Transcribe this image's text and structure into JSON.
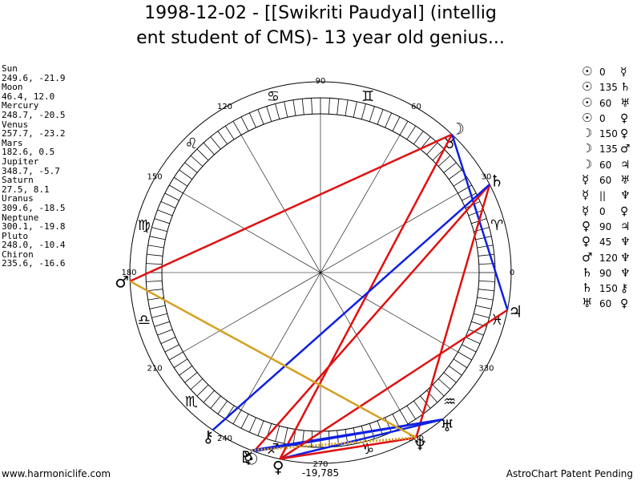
{
  "header": {
    "title_line1": "1998-12-02 - [[Swikriti Paudyal] (intellig",
    "title_line2": "ent student of CMS)- 13 year old genius..."
  },
  "positions": [
    {
      "name": "Sun",
      "lon": 249.6,
      "lat": -21.9,
      "value": "249.6, -21.9"
    },
    {
      "name": "Moon",
      "lon": 46.4,
      "lat": 12.0,
      "value": "46.4, 12.0"
    },
    {
      "name": "Mercury",
      "lon": 248.7,
      "lat": -20.5,
      "value": "248.7, -20.5"
    },
    {
      "name": "Venus",
      "lon": 257.7,
      "lat": -23.2,
      "value": "257.7, -23.2"
    },
    {
      "name": "Mars",
      "lon": 182.6,
      "lat": 0.5,
      "value": "182.6, 0.5"
    },
    {
      "name": "Jupiter",
      "lon": 348.7,
      "lat": -5.7,
      "value": "348.7, -5.7"
    },
    {
      "name": "Saturn",
      "lon": 27.5,
      "lat": 8.1,
      "value": "27.5, 8.1"
    },
    {
      "name": "Uranus",
      "lon": 309.6,
      "lat": -18.5,
      "value": "309.6, -18.5"
    },
    {
      "name": "Neptune",
      "lon": 300.1,
      "lat": -19.8,
      "value": "300.1, -19.8"
    },
    {
      "name": "Pluto",
      "lon": 248.0,
      "lat": -10.4,
      "value": "248.0, -10.4"
    },
    {
      "name": "Chiron",
      "lon": 235.6,
      "lat": -16.6,
      "value": "235.6, -16.6"
    }
  ],
  "aspects": [
    {
      "p1": "☉",
      "deg": "0",
      "p2": "☿"
    },
    {
      "p1": "☉",
      "deg": "135",
      "p2": "♄"
    },
    {
      "p1": "☉",
      "deg": "60",
      "p2": "♅"
    },
    {
      "p1": "☉",
      "deg": "0",
      "p2": "♀"
    },
    {
      "p1": "☽",
      "deg": "150",
      "p2": "♀"
    },
    {
      "p1": "☽",
      "deg": "135",
      "p2": "♂"
    },
    {
      "p1": "☽",
      "deg": "60",
      "p2": "♃"
    },
    {
      "p1": "☿",
      "deg": "60",
      "p2": "♅"
    },
    {
      "p1": "☿",
      "deg": "||",
      "p2": "♆"
    },
    {
      "p1": "☿",
      "deg": "0",
      "p2": "♀"
    },
    {
      "p1": "♀",
      "deg": "90",
      "p2": "♃"
    },
    {
      "p1": "♀",
      "deg": "45",
      "p2": "♆"
    },
    {
      "p1": "♂",
      "deg": "120",
      "p2": "♆"
    },
    {
      "p1": "♄",
      "deg": "90",
      "p2": "♆"
    },
    {
      "p1": "♄",
      "deg": "150",
      "p2": "⚷"
    },
    {
      "p1": "♅",
      "deg": "60",
      "p2": "♀"
    }
  ],
  "wheel": {
    "degree_labels": [
      "0",
      "30",
      "60",
      "90",
      "120",
      "150",
      "180",
      "210",
      "240",
      "270",
      "300",
      "330"
    ],
    "signs": [
      "♈",
      "♉",
      "♊",
      "♋",
      "♌",
      "♍",
      "♎",
      "♏",
      "♐",
      "♑",
      "♒",
      "♓"
    ],
    "planets": [
      {
        "glyph": "☉",
        "lon": 249.6
      },
      {
        "glyph": "☽",
        "lon": 46.4
      },
      {
        "glyph": "☿",
        "lon": 248.7
      },
      {
        "glyph": "♀",
        "lon": 257.7
      },
      {
        "glyph": "♂",
        "lon": 182.6
      },
      {
        "glyph": "♃",
        "lon": 348.7
      },
      {
        "glyph": "♄",
        "lon": 27.5
      },
      {
        "glyph": "♅",
        "lon": 309.6
      },
      {
        "glyph": "♆",
        "lon": 300.1
      },
      {
        "glyph": "♇",
        "lon": 248.0
      },
      {
        "glyph": "⚷",
        "lon": 235.6
      }
    ],
    "aspect_lines": [
      {
        "a": 46.4,
        "b": 182.6,
        "color": "#e01010"
      },
      {
        "a": 46.4,
        "b": 257.7,
        "color": "#e01010"
      },
      {
        "a": 46.4,
        "b": 348.7,
        "color": "#1020e0"
      },
      {
        "a": 27.5,
        "b": 249.6,
        "color": "#e01010"
      },
      {
        "a": 27.5,
        "b": 300.1,
        "color": "#e01010"
      },
      {
        "a": 27.5,
        "b": 235.6,
        "color": "#1020e0"
      },
      {
        "a": 249.6,
        "b": 309.6,
        "color": "#1020e0"
      },
      {
        "a": 248.7,
        "b": 309.6,
        "color": "#1020e0"
      },
      {
        "a": 309.6,
        "b": 257.7,
        "color": "#1020e0"
      },
      {
        "a": 257.7,
        "b": 348.7,
        "color": "#e01010"
      },
      {
        "a": 257.7,
        "b": 300.1,
        "color": "#e01010"
      },
      {
        "a": 182.6,
        "b": 300.1,
        "color": "#d4a020"
      },
      {
        "a": 248.7,
        "b": 300.1,
        "color": "#d4a020",
        "dotted": true
      }
    ],
    "bottom_label": "-19,785"
  },
  "footer": {
    "left": "www.harmoniclife.com",
    "right": "AstroChart Patent Pending"
  }
}
